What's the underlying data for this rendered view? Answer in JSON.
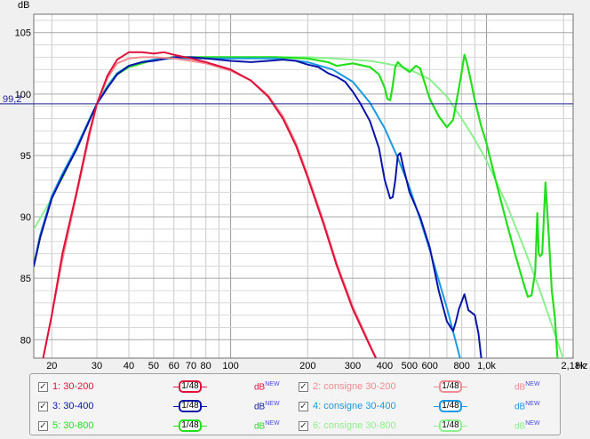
{
  "chart_data": {
    "type": "line",
    "ylabel": "dB",
    "xunit": "Hz",
    "xscale": "log",
    "xlim": [
      17,
      2180
    ],
    "ylim": [
      78.5,
      106.5
    ],
    "grid": true,
    "yticks": [
      {
        "v": 80,
        "label": "80"
      },
      {
        "v": 85,
        "label": "85"
      },
      {
        "v": 90,
        "label": "90"
      },
      {
        "v": 95,
        "label": "95"
      },
      {
        "v": 100,
        "label": "100"
      },
      {
        "v": 105,
        "label": "105"
      }
    ],
    "xticks": [
      {
        "v": 20,
        "label": "20"
      },
      {
        "v": 30,
        "label": "30"
      },
      {
        "v": 40,
        "label": "40"
      },
      {
        "v": 50,
        "label": "50"
      },
      {
        "v": 60,
        "label": "60"
      },
      {
        "v": 70,
        "label": "70"
      },
      {
        "v": 80,
        "label": "80"
      },
      {
        "v": 100,
        "label": "100"
      },
      {
        "v": 200,
        "label": "200"
      },
      {
        "v": 300,
        "label": "300"
      },
      {
        "v": 400,
        "label": "400"
      },
      {
        "v": 500,
        "label": "500"
      },
      {
        "v": 600,
        "label": "600"
      },
      {
        "v": 800,
        "label": "800"
      },
      {
        "v": 1000,
        "label": "1,0k"
      },
      {
        "v": 2180,
        "label": "2,18k"
      }
    ],
    "reference_line": {
      "value": 99.2,
      "label": "99,2",
      "color": "#1f1f9f"
    },
    "legend_position": "bottom",
    "series": [
      {
        "name": "1: 30-200",
        "color": "#e0103a",
        "width": 2,
        "points": [
          [
            18.3,
            78
          ],
          [
            20,
            82
          ],
          [
            22,
            87
          ],
          [
            25,
            92
          ],
          [
            28,
            96.8
          ],
          [
            30,
            99.2
          ],
          [
            33,
            101.5
          ],
          [
            36,
            102.8
          ],
          [
            40,
            103.4
          ],
          [
            45,
            103.4
          ],
          [
            50,
            103.3
          ],
          [
            55,
            103.4
          ],
          [
            60,
            103.2
          ],
          [
            70,
            102.9
          ],
          [
            80,
            102.6
          ],
          [
            100,
            102
          ],
          [
            120,
            101.1
          ],
          [
            140,
            99.8
          ],
          [
            160,
            98
          ],
          [
            180,
            95.8
          ],
          [
            200,
            93.2
          ],
          [
            230,
            89.5
          ],
          [
            260,
            86
          ],
          [
            300,
            82.5
          ],
          [
            350,
            79.5
          ],
          [
            400,
            77
          ]
        ]
      },
      {
        "name": "2: consigne 30-200",
        "color": "#f08a90",
        "width": 2,
        "points": [
          [
            18.3,
            78
          ],
          [
            20,
            82
          ],
          [
            22,
            86.5
          ],
          [
            25,
            91.8
          ],
          [
            28,
            96.5
          ],
          [
            30,
            99.2
          ],
          [
            33,
            101.3
          ],
          [
            36,
            102.5
          ],
          [
            40,
            102.9
          ],
          [
            45,
            103
          ],
          [
            50,
            103
          ],
          [
            60,
            102.9
          ],
          [
            70,
            102.7
          ],
          [
            80,
            102.5
          ],
          [
            100,
            101.9
          ],
          [
            120,
            101.1
          ],
          [
            140,
            99.9
          ],
          [
            160,
            98.2
          ],
          [
            180,
            96
          ],
          [
            200,
            93.4
          ],
          [
            230,
            89.7
          ],
          [
            260,
            86.2
          ],
          [
            300,
            82.7
          ],
          [
            350,
            79.6
          ],
          [
            400,
            77
          ]
        ]
      },
      {
        "name": "3: 30-400",
        "color": "#0a14a8",
        "width": 2,
        "points": [
          [
            17,
            86
          ],
          [
            18,
            88.3
          ],
          [
            20,
            91.5
          ],
          [
            22,
            93.3
          ],
          [
            25,
            95.5
          ],
          [
            28,
            97.8
          ],
          [
            30,
            99.2
          ],
          [
            33,
            100.5
          ],
          [
            36,
            101.6
          ],
          [
            40,
            102.3
          ],
          [
            45,
            102.6
          ],
          [
            50,
            102.7
          ],
          [
            60,
            103
          ],
          [
            70,
            103
          ],
          [
            80,
            102.9
          ],
          [
            100,
            102.7
          ],
          [
            120,
            102.6
          ],
          [
            140,
            102.7
          ],
          [
            160,
            102.8
          ],
          [
            180,
            102.7
          ],
          [
            200,
            102.4
          ],
          [
            220,
            102.2
          ],
          [
            240,
            101.7
          ],
          [
            260,
            101.4
          ],
          [
            280,
            101
          ],
          [
            300,
            100.2
          ],
          [
            320,
            99.3
          ],
          [
            350,
            97.8
          ],
          [
            380,
            95.6
          ],
          [
            400,
            93
          ],
          [
            420,
            91.5
          ],
          [
            430,
            91.6
          ],
          [
            440,
            93
          ],
          [
            450,
            95
          ],
          [
            460,
            95.2
          ],
          [
            470,
            94.3
          ],
          [
            500,
            92
          ],
          [
            550,
            90
          ],
          [
            600,
            87.5
          ],
          [
            650,
            84
          ],
          [
            700,
            81.5
          ],
          [
            740,
            80.7
          ],
          [
            760,
            81.5
          ],
          [
            780,
            82.5
          ],
          [
            820,
            83.7
          ],
          [
            850,
            82.4
          ],
          [
            900,
            82
          ],
          [
            930,
            80.5
          ],
          [
            960,
            78
          ]
        ]
      },
      {
        "name": "4: consigne 30-400",
        "color": "#1a9ae4",
        "width": 2,
        "points": [
          [
            17,
            86
          ],
          [
            18,
            88.5
          ],
          [
            20,
            91.7
          ],
          [
            22,
            93.5
          ],
          [
            25,
            95.7
          ],
          [
            28,
            97.9
          ],
          [
            30,
            99.2
          ],
          [
            33,
            100.6
          ],
          [
            36,
            101.7
          ],
          [
            40,
            102.3
          ],
          [
            45,
            102.6
          ],
          [
            50,
            102.8
          ],
          [
            60,
            102.9
          ],
          [
            80,
            102.9
          ],
          [
            100,
            102.9
          ],
          [
            150,
            102.9
          ],
          [
            200,
            102.6
          ],
          [
            250,
            102
          ],
          [
            300,
            101
          ],
          [
            350,
            99.3
          ],
          [
            400,
            97.2
          ],
          [
            450,
            94.8
          ],
          [
            500,
            92.4
          ],
          [
            550,
            89.8
          ],
          [
            600,
            87.3
          ],
          [
            700,
            82.6
          ],
          [
            800,
            78
          ]
        ]
      },
      {
        "name": "5: 30-800",
        "color": "#22e01c",
        "width": 2.2,
        "points": [
          [
            17,
            86
          ],
          [
            18,
            88.3
          ],
          [
            20,
            91.7
          ],
          [
            22,
            93.2
          ],
          [
            25,
            95.6
          ],
          [
            28,
            97.9
          ],
          [
            30,
            99.2
          ],
          [
            33,
            100.6
          ],
          [
            36,
            101.6
          ],
          [
            40,
            102.2
          ],
          [
            45,
            102.5
          ],
          [
            50,
            102.8
          ],
          [
            60,
            103
          ],
          [
            80,
            103
          ],
          [
            100,
            103
          ],
          [
            150,
            103
          ],
          [
            200,
            102.9
          ],
          [
            240,
            102.6
          ],
          [
            260,
            102.3
          ],
          [
            300,
            102.5
          ],
          [
            350,
            102.2
          ],
          [
            380,
            101.6
          ],
          [
            400,
            100.5
          ],
          [
            410,
            99.6
          ],
          [
            420,
            99.5
          ],
          [
            430,
            100.7
          ],
          [
            440,
            102.2
          ],
          [
            450,
            102.6
          ],
          [
            470,
            102.2
          ],
          [
            500,
            101.8
          ],
          [
            530,
            102.3
          ],
          [
            550,
            102.1
          ],
          [
            600,
            99.6
          ],
          [
            650,
            98.2
          ],
          [
            700,
            97.3
          ],
          [
            740,
            97.9
          ],
          [
            780,
            100.5
          ],
          [
            800,
            101.8
          ],
          [
            820,
            103.2
          ],
          [
            840,
            102.5
          ],
          [
            870,
            101
          ],
          [
            900,
            99.5
          ],
          [
            950,
            97.5
          ],
          [
            1000,
            96
          ],
          [
            1100,
            92.5
          ],
          [
            1200,
            89.5
          ],
          [
            1300,
            86.8
          ],
          [
            1400,
            84.5
          ],
          [
            1450,
            83.5
          ],
          [
            1500,
            83.6
          ],
          [
            1550,
            85.5
          ],
          [
            1580,
            90.3
          ],
          [
            1600,
            87
          ],
          [
            1620,
            86.8
          ],
          [
            1650,
            87
          ],
          [
            1700,
            92.8
          ],
          [
            1750,
            88.6
          ],
          [
            1800,
            84
          ],
          [
            1850,
            81.8
          ],
          [
            1900,
            78
          ]
        ]
      },
      {
        "name": "6: consigne 30-800",
        "color": "#8cf08c",
        "width": 2,
        "points": [
          [
            17,
            89
          ],
          [
            20,
            91.5
          ],
          [
            22,
            93.5
          ],
          [
            25,
            95.7
          ],
          [
            28,
            97.9
          ],
          [
            30,
            99.2
          ],
          [
            33,
            100.7
          ],
          [
            36,
            101.7
          ],
          [
            40,
            102.3
          ],
          [
            45,
            102.6
          ],
          [
            50,
            102.8
          ],
          [
            60,
            102.9
          ],
          [
            80,
            103
          ],
          [
            100,
            103
          ],
          [
            150,
            103
          ],
          [
            200,
            103
          ],
          [
            250,
            102.9
          ],
          [
            300,
            102.8
          ],
          [
            350,
            102.7
          ],
          [
            400,
            102.5
          ],
          [
            450,
            102.3
          ],
          [
            500,
            102
          ],
          [
            600,
            101.2
          ],
          [
            700,
            99.8
          ],
          [
            800,
            98
          ],
          [
            900,
            96.3
          ],
          [
            1000,
            94.6
          ],
          [
            1200,
            91
          ],
          [
            1400,
            87.5
          ],
          [
            1600,
            84.3
          ],
          [
            1800,
            81.2
          ],
          [
            2000,
            78.4
          ]
        ]
      }
    ]
  },
  "legend": {
    "items": [
      {
        "label": "1: 30-200",
        "color": "#e0103a",
        "checked": true,
        "slope_label": "48",
        "unit": "dB",
        "unit_sup": "NEW"
      },
      {
        "label": "2: consigne 30-200",
        "color": "#f08a90",
        "checked": true,
        "slope_label": "48",
        "unit": "dB",
        "unit_sup": "NEW"
      },
      {
        "label": "3: 30-400",
        "color": "#0a14a8",
        "checked": true,
        "slope_label": "48",
        "unit": "dB",
        "unit_sup": "NEW"
      },
      {
        "label": "4: consigne 30-400",
        "color": "#1a9ae4",
        "checked": true,
        "slope_label": "48",
        "unit": "dB",
        "unit_sup": "NEW"
      },
      {
        "label": "5: 30-800",
        "color": "#22e01c",
        "checked": true,
        "slope_label": "48",
        "unit": "dB",
        "unit_sup": "NEW"
      },
      {
        "label": "6: consigne 30-800",
        "color": "#8cf08c",
        "checked": true,
        "slope_label": "48",
        "unit": "dB",
        "unit_sup": "NEW"
      }
    ],
    "slope_prefix": "1",
    "check_mark": "✓"
  }
}
